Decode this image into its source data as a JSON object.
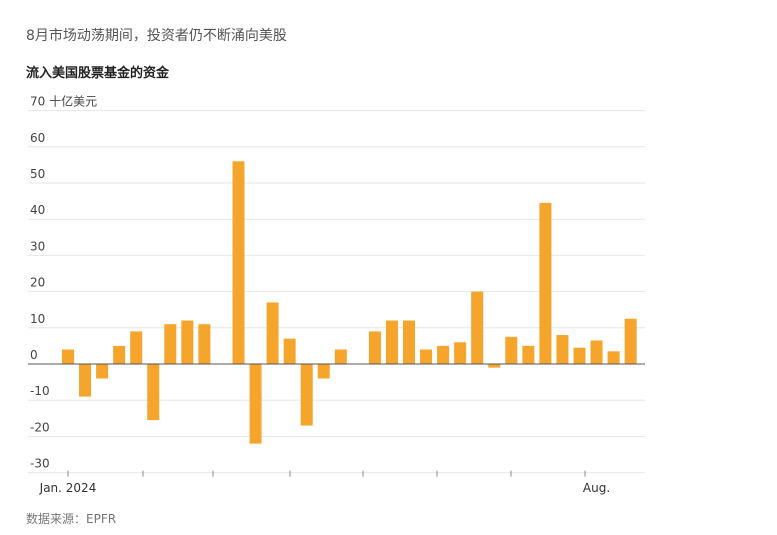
{
  "chart_data": {
    "type": "bar",
    "subtitle": "8月市场动荡期间，投资者仍不断涌向美股",
    "title": "流入美国股票基金的资金",
    "source": "数据来源：EPFR",
    "categories": [
      "Jan. 2024",
      null,
      null,
      null,
      null,
      null,
      null,
      null,
      null,
      null,
      null,
      null,
      null,
      null,
      null,
      null,
      null,
      null,
      null,
      null,
      null,
      null,
      null,
      null,
      null,
      null,
      null,
      null,
      null,
      null,
      null,
      "Aug.",
      null,
      null
    ],
    "values": [
      4,
      -9,
      -4,
      5,
      9,
      -15.5,
      11,
      12,
      11,
      0,
      56,
      -22,
      17,
      7,
      -17,
      -4,
      4,
      0,
      9,
      12,
      12,
      4,
      5,
      6,
      20,
      -1,
      7.5,
      5,
      44.5,
      8,
      4.5,
      6.5,
      3.5,
      12.5
    ],
    "color": "#f5a42c",
    "ylim": [
      -30,
      70
    ],
    "yticks": [
      -30,
      -20,
      -10,
      0,
      10,
      20,
      30,
      40,
      50,
      60,
      {
        "value": 70,
        "label": "70 十亿美元"
      }
    ],
    "grid": true
  }
}
